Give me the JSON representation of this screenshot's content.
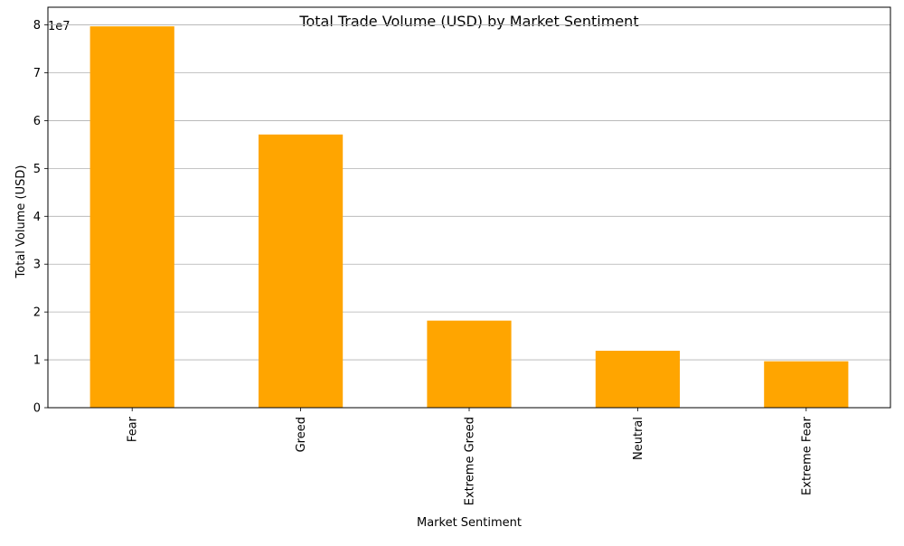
{
  "chart_data": {
    "type": "bar",
    "title": "Total Trade Volume (USD) by Market Sentiment",
    "xlabel": "Market Sentiment",
    "ylabel": "Total Volume (USD)",
    "y_offset_label": "1e7",
    "categories": [
      "Fear",
      "Greed",
      "Extreme Greed",
      "Neutral",
      "Extreme Fear"
    ],
    "values": [
      79700000,
      57100000,
      18200000,
      11900000,
      9700000
    ],
    "y_ticks": [
      0,
      1,
      2,
      3,
      4,
      5,
      6,
      7,
      8
    ],
    "y_tick_scale": 10000000,
    "ylim": [
      0,
      83700000
    ],
    "grid": "horizontal",
    "bar_color": "#ffa500",
    "legend": "none"
  }
}
